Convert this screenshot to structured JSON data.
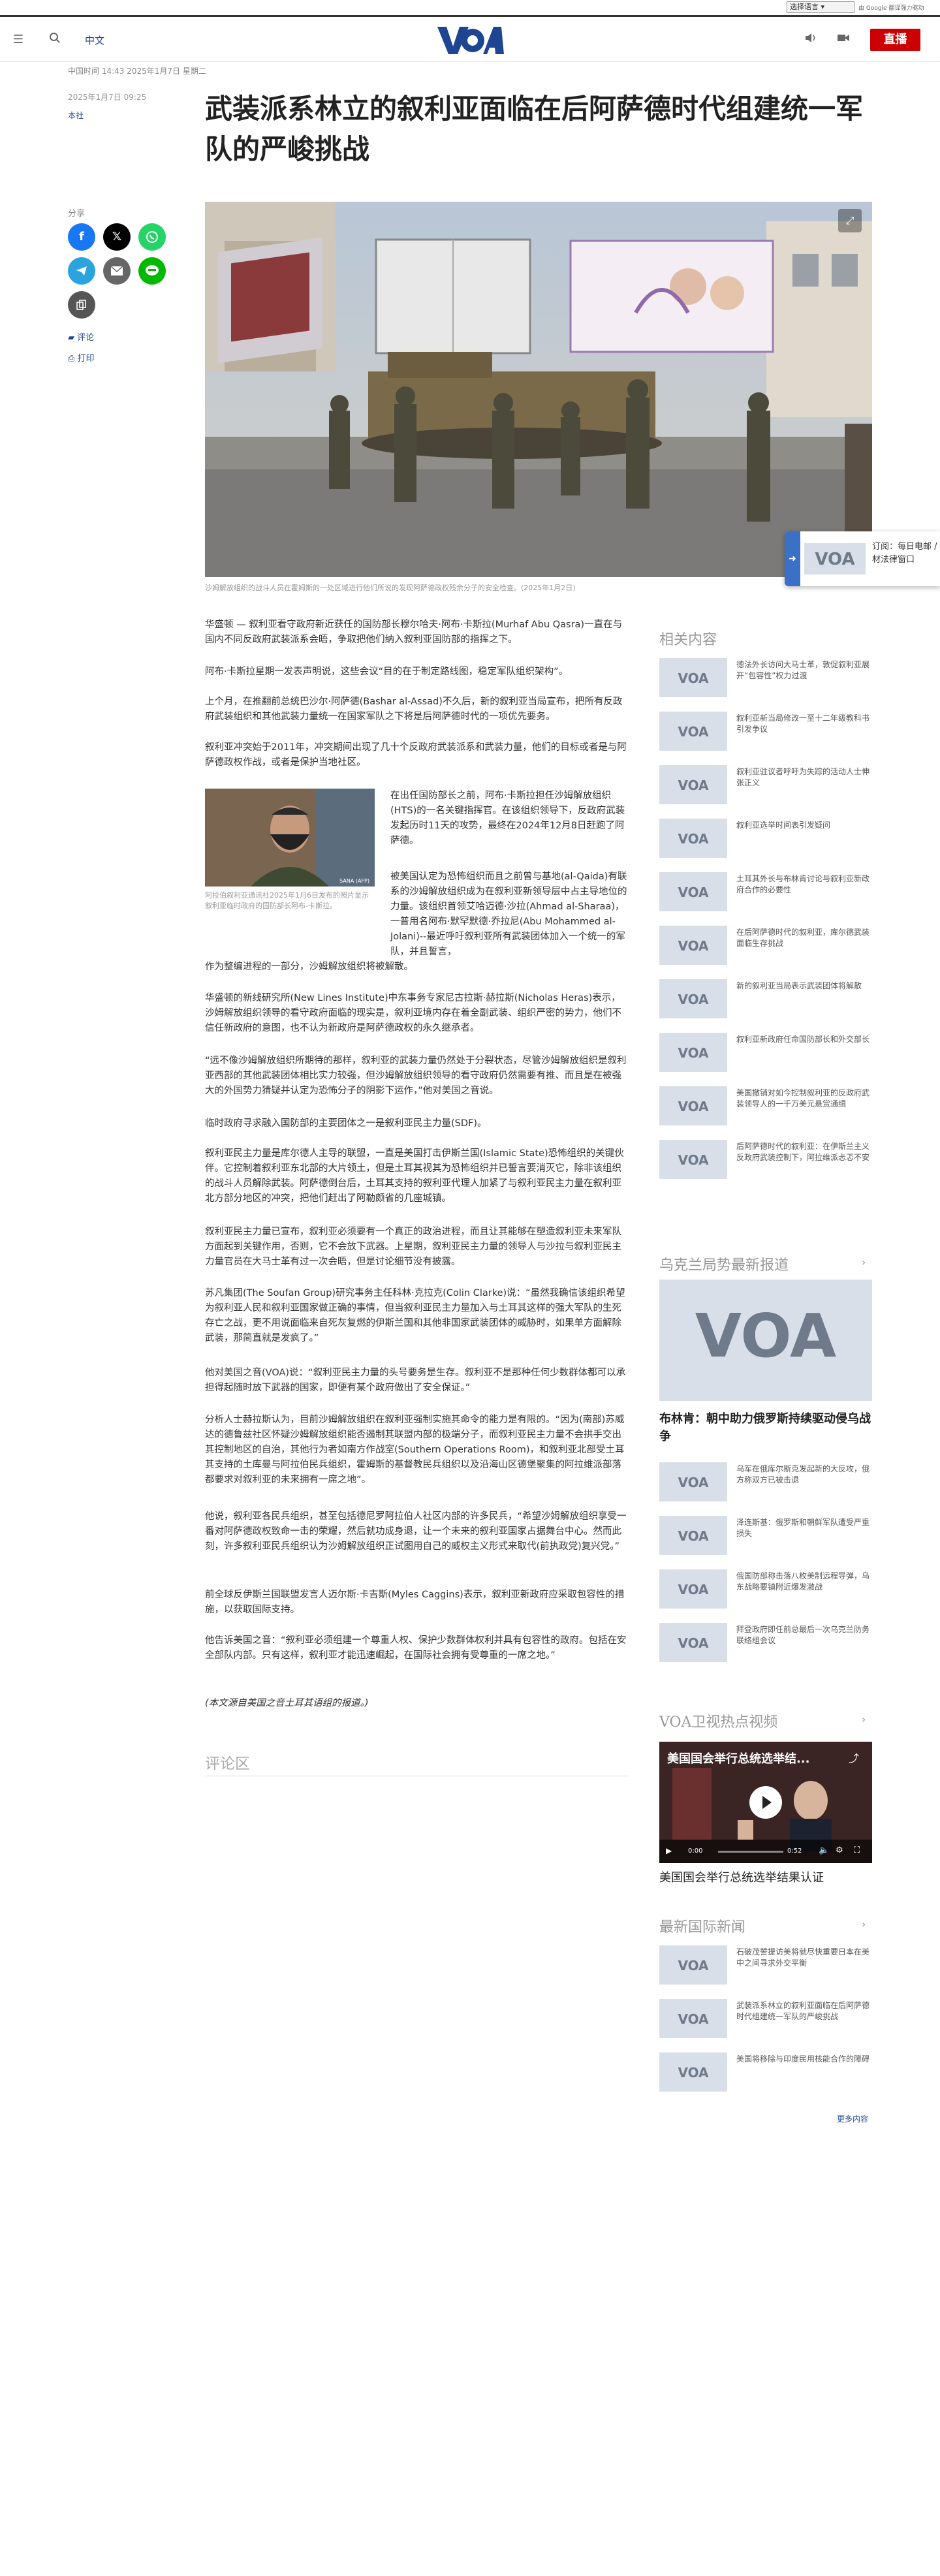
{
  "topbar": {
    "lang_select": "选择语言",
    "translate_credit": "由 Google 翻译强力驱动"
  },
  "header": {
    "site_lang": "中文",
    "live": "直播",
    "logo_text": "VOA"
  },
  "article": {
    "date_line": "中国时间 14:43 2025年1月7日 星期二",
    "pub_date": "2025年1月7日 09:25",
    "tag": "本社",
    "headline": "武装派系林立的叙利亚面临在后阿萨德时代组建统一军队的严峻挑战",
    "hero_caption": "沙姆解放组织的战斗人员在霍姆斯的一处区域进行他们所说的发现阿萨德政权残余分子的安全检查。(2025年1月2日)",
    "inline_caption": "阿拉伯叙利亚通讯社2025年1月6日发布的照片显示叙利亚临时政府的国防部长阿布-卡斯拉。",
    "inline_credit": "SANA (AFP)",
    "paragraphs": [
      "华盛顿 — 叙利亚看守政府新近获任的国防部长穆尔哈夫·阿布·卡斯拉(Murhaf Abu Qasra)一直在与国内不同反政府武装派系会晤，争取把他们纳入叙利亚国防部的指挥之下。",
      "阿布·卡斯拉星期一发表声明说，这些会议“目的在于制定路线图，稳定军队组织架构”。",
      "上个月，在推翻前总统巴沙尔·阿萨德(Bashar al-Assad)不久后，新的叙利亚当局宣布，把所有反政府武装组织和其他武装力量统一在国家军队之下将是后阿萨德时代的一项优先要务。",
      "叙利亚冲突始于2011年，冲突期间出现了几十个反政府武装派系和武装力量，他们的目标或者是与阿萨德政权作战，或者是保护当地社区。",
      "在出任国防部长之前，阿布·卡斯拉担任沙姆解放组织(HTS)的一名关键指挥官。在该组织领导下，反政府武装发起历时11天的攻势，最终在2024年12月8日赶跑了阿萨德。",
      "被美国认定为恐怖组织而且之前曾与基地(al-Qaida)有联系的沙姆解放组织成为在叙利亚新领导层中占主导地位的力量。该组织首领艾哈迈德·沙拉(Ahmad al-Sharaa)，一普用名阿布·默罕默德·乔拉尼(Abu Mohammed al-Jolani)--最近呼吁叙利亚所有武装团体加入一个统一的军队，并且誓言，作为整编进程的一部分，沙姆解放组织将被解散。",
      "华盛顿的新线研究所(New Lines Institute)中东事务专家尼古拉斯·赫拉斯(Nicholas Heras)表示，沙姆解放组织领导的看守政府面临的现实是，叙利亚境内存在着全副武装、组织严密的势力，他们不信任新政府的意图，也不认为新政府是阿萨德政权的永久继承者。",
      "“远不像沙姆解放组织所期待的那样，叙利亚的武装力量仍然处于分裂状态，尽管沙姆解放组织是叙利亚西部的其他武装团体相比实力较强，但沙姆解放组织领导的看守政府仍然需要有推、而且是在被强大的外国势力猜疑并认定为恐怖分子的阴影下运作，”他对美国之音说。",
      "临时政府寻求融入国防部的主要团体之一是叙利亚民主力量(SDF)。",
      "叙利亚民主力量是库尔德人主导的联盟，一直是美国打击伊斯兰国(Islamic State)恐怖组织的关键伙伴。它控制着叙利亚东北部的大片领土，但是土耳其视其为恐怖组织并已誓言要消灭它，除非该组织的战斗人员解除武装。阿萨德倒台后，土耳其支持的叙利亚代理人加紧了与叙利亚民主力量在叙利亚北方部分地区的冲突，把他们赶出了阿勒颇省的几座城镇。",
      "叙利亚民主力量已宣布，叙利亚必须要有一个真正的政治进程，而且让其能够在塑造叙利亚未来军队方面起到关键作用，否则，它不会放下武器。上星期，叙利亚民主力量的领导人与沙拉与叙利亚民主力量官员在大马士革有过一次会晤，但是讨论细节没有披露。",
      "苏凡集团(The Soufan Group)研究事务主任科林·克拉克(Colin Clarke)说：“虽然我确信该组织希望为叙利亚人民和叙利亚国家做正确的事情，但当叙利亚民主力量加入与土耳其这样的强大军队的生死存亡之战，更不用说面临来自死灰复燃的伊斯兰国和其他非国家武装团体的威胁时，如果单方面解除武装，那简直就是发疯了。”",
      "他对美国之音(VOA)说：“叙利亚民主力量的头号要务是生存。叙利亚不是那种任何少数群体都可以承担得起随时放下武器的国家，即便有某个政府做出了安全保证。”",
      "分析人士赫拉斯认为，目前沙姆解放组织在叙利亚强制实施其命令的能力是有限的。“因为(南部)苏威达的德鲁兹社区怀疑沙姆解放组织能否遏制其联盟内部的极端分子，而叙利亚民主力量不会拱手交出其控制地区的自治，其他行为者如南方作战室(Southern Operations Room)，和叙利亚北部受土耳其支持的土库曼与阿拉伯民兵组织，霍姆斯的基督教民兵组织以及沿海山区德堡聚集的阿拉维派部落都要求对叙利亚的未来拥有一席之地”。",
      "他说，叙利亚各民兵组织，甚至包括德尼罗阿拉伯人社区内部的许多民兵，“希望沙姆解放组织享受一番对阿萨德政权致命一击的荣耀，然后就功成身退，让一个未来的叙利亚国家占据舞台中心。然而此刻，许多叙利亚民兵组织认为沙姆解放组织正试图用自己的威权主义形式来取代(前执政党)复兴党。”",
      "前全球反伊斯兰国联盟发言人迈尔斯·卡吉斯(Myles Caggins)表示，叙利亚新政府应采取包容性的措施，以获取国际支持。",
      "他告诉美国之音：“叙利亚必须组建一个尊重人权、保护少数群体权利并具有包容性的政府。包括在安全部队内部。只有这样，叙利亚才能迅速崛起，在国际社会拥有受尊重的一席之地。”",
      "(本文源自美国之音土耳其语组的报道。)"
    ],
    "comments_heading": "评论区"
  },
  "share": {
    "label": "分享",
    "comments": "评论",
    "print": "打印"
  },
  "subscribe": {
    "text": "订阅：每日电邮 / 材法律窗口"
  },
  "sidebar": {
    "related_heading": "相关内容",
    "related": [
      "德法外长访问大马士革，敦促叙利亚展开“包容性”权力过渡",
      "叙利亚新当局修改一至十二年级教科书引发争议",
      "叙利亚驻议者呼吁为失踪的活动人士伸张正义",
      "叙利亚选举时间表引发疑问",
      "土耳其外长与布林肯讨论与叙利亚新政府合作的必要性",
      "在后阿萨德时代的叙利亚，库尔德武装面临生存挑战",
      "新的叙利亚当局表示武装团体将解散",
      "叙利亚新政府任命国防部长和外交部长",
      "美国撤销对如今控制叙利亚的反政府武装领导人的一千万美元悬赏通缉",
      "后阿萨德时代的叙利亚：在伊斯兰主义反政府武装控制下，阿拉维派忐忑不安"
    ],
    "ukraine_heading": "乌克兰局势最新报道",
    "ukraine_main": "布林肯：朝中助力俄罗斯持续驱动侵乌战争",
    "ukraine": [
      "乌军在俄库尔斯克发起新的大反攻，俄方称双方已被击退",
      "泽连斯基：俄罗斯和朝鲜军队遭受严重损失",
      "俄国防部称击落八枚美制远程导弹，乌东战略要镇附近爆发激战",
      "拜登政府即任前总最后一次乌克兰防务联络组会议"
    ],
    "video_heading": "VOA卫视热点视频",
    "video_overlay": "美国国会举行总统选举结...",
    "video_caption": "美国国会举行总统选举结果认证",
    "video_time": "0:00",
    "video_duration": "0:52",
    "intl_heading": "最新国际新闻",
    "intl": [
      "石破茂誓提访美将就尽快重要日本在美中之间寻求外交平衡",
      "武装派系林立的叙利亚面临在后阿萨德时代组建统一军队的严峻挑战",
      "美国将移除与印度民用核能合作的障碍"
    ],
    "more": "更多内容"
  },
  "colors": {
    "brand_blue": "#1e4591",
    "live_red": "#cc0000",
    "facebook": "#1877f2",
    "twitter_x": "#000000",
    "whatsapp": "#25d366",
    "telegram": "#2aa3df",
    "email": "#666666",
    "line": "#00b900"
  }
}
